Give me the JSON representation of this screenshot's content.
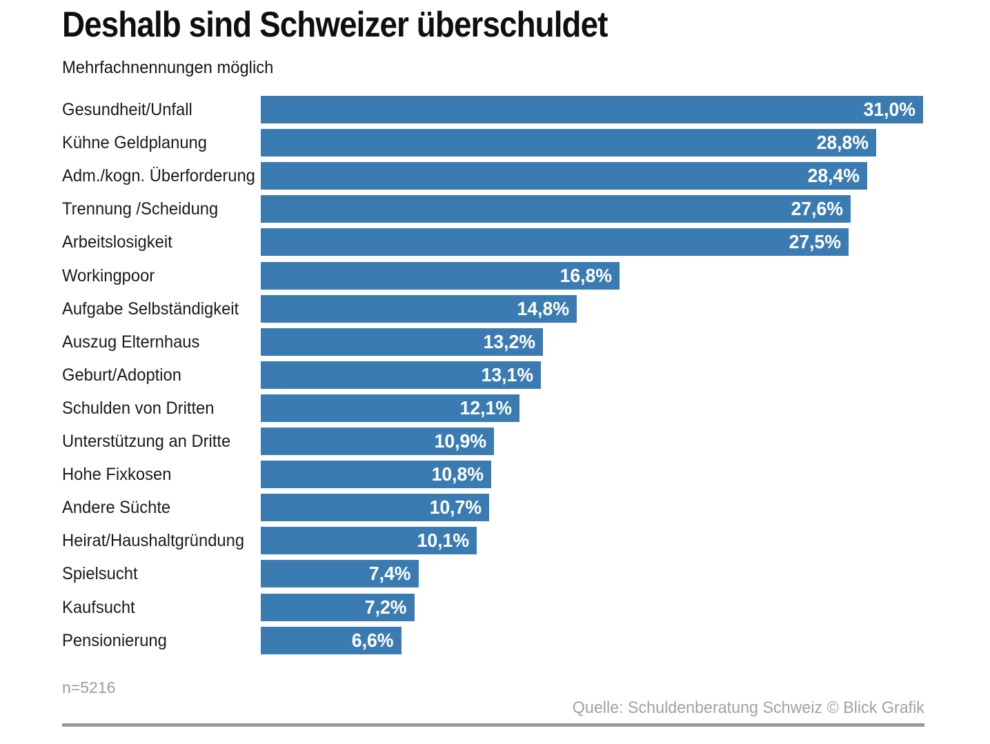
{
  "header": {
    "title": "Deshalb sind Schweizer überschuldet",
    "subtitle": "Mehrfachnennungen möglich"
  },
  "chart_data": {
    "type": "bar",
    "orientation": "horizontal",
    "title": "Deshalb sind Schweizer überschuldet",
    "subtitle": "Mehrfachnennungen möglich",
    "categories": [
      "Gesundheit/Unfall",
      "Kühne Geldplanung",
      "Adm./kogn. Überforderung",
      "Trennung /Scheidung",
      "Arbeitslosigkeit",
      "Workingpoor",
      "Aufgabe Selbständigkeit",
      "Auszug Elternhaus",
      "Geburt/Adoption",
      "Schulden von Dritten",
      "Unterstützung an Dritte",
      "Hohe Fixkosen",
      "Andere Süchte",
      "Heirat/Haushaltgründung",
      "Spielsucht",
      "Kaufsucht",
      "Pensionierung"
    ],
    "values": [
      31.0,
      28.8,
      28.4,
      27.6,
      27.5,
      16.8,
      14.8,
      13.2,
      13.1,
      12.1,
      10.9,
      10.8,
      10.7,
      10.1,
      7.4,
      7.2,
      6.6
    ],
    "value_labels": [
      "31,0%",
      "28,8%",
      "28,4%",
      "27,6%",
      "27,5%",
      "16,8%",
      "14,8%",
      "13,2%",
      "13,1%",
      "12,1%",
      "10,9%",
      "10,8%",
      "10,7%",
      "10,1%",
      "7,4%",
      "7,2%",
      "6,6%"
    ],
    "xlim": [
      0,
      31.0
    ],
    "grid": false,
    "legend": "none",
    "bar_color": "#3a7cb2",
    "value_label_color": "#ffffff",
    "category_label_color": "#1a1a1a"
  },
  "footer": {
    "sample_label": "n=5216",
    "source": "Quelle: Schuldenberatung Schweiz © Blick Grafik"
  }
}
